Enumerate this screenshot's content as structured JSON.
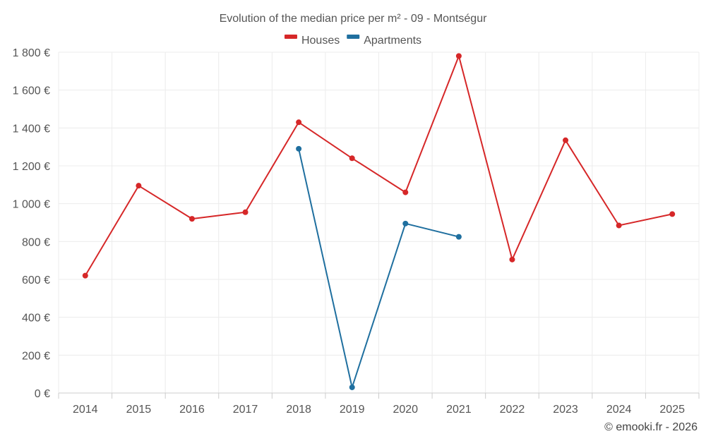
{
  "chart_data": {
    "type": "line",
    "title": "Evolution of the median price per m² - 09 - Montségur",
    "categories": [
      "2014",
      "2015",
      "2016",
      "2017",
      "2018",
      "2019",
      "2020",
      "2021",
      "2022",
      "2023",
      "2024",
      "2025"
    ],
    "ylim": [
      0,
      1800
    ],
    "yticks": [
      0,
      200,
      400,
      600,
      800,
      1000,
      1200,
      1400,
      1600,
      1800
    ],
    "ytick_labels": [
      "0 €",
      "200 €",
      "400 €",
      "600 €",
      "800 €",
      "1 000 €",
      "1 200 €",
      "1 400 €",
      "1 600 €",
      "1 800 €"
    ],
    "legend_position": "top-center",
    "grid": true,
    "series": [
      {
        "name": "Houses",
        "color": "#d62728",
        "values": [
          620,
          1095,
          920,
          955,
          1430,
          1240,
          1060,
          1780,
          705,
          1335,
          885,
          945
        ]
      },
      {
        "name": "Apartments",
        "color": "#1f6f9f",
        "values": [
          null,
          null,
          null,
          null,
          1290,
          30,
          895,
          825,
          null,
          null,
          null,
          null
        ]
      }
    ]
  },
  "credit": "© emooki.fr - 2026"
}
